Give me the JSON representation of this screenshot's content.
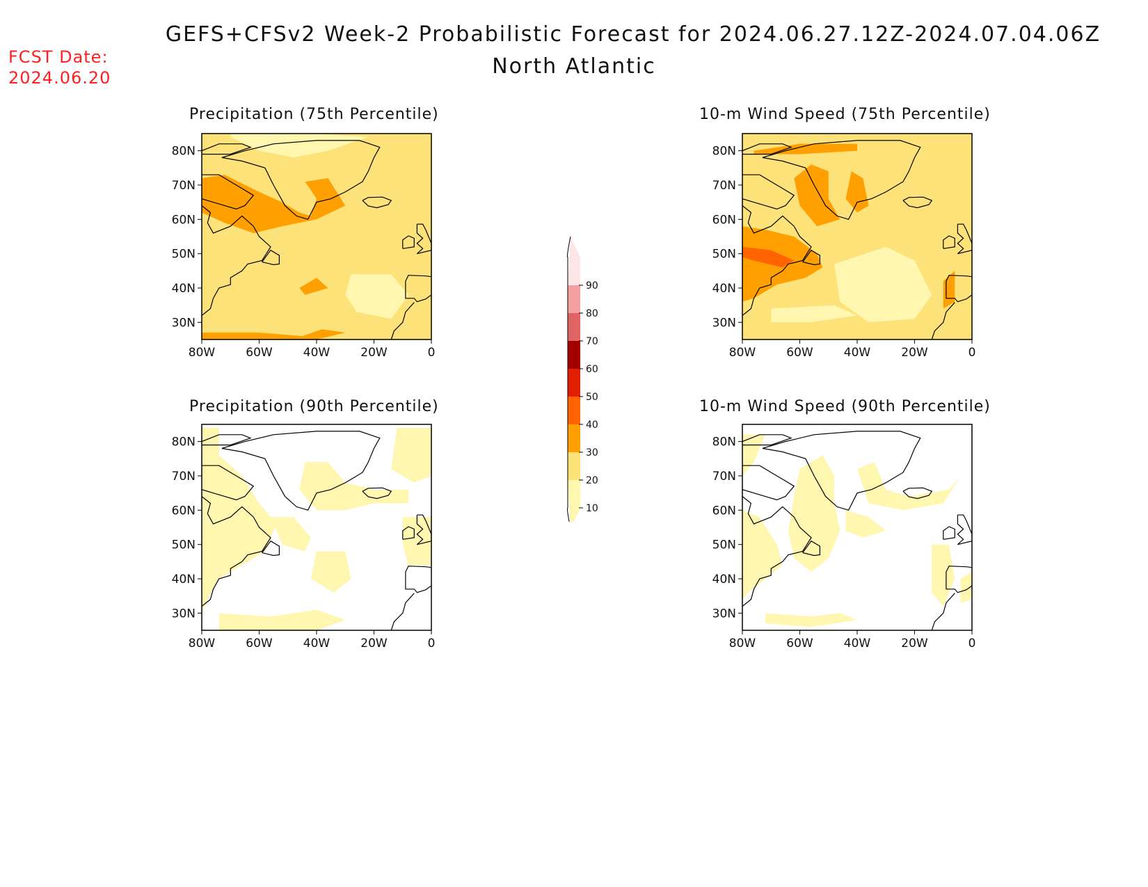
{
  "header": {
    "title": "GEFS+CFSv2 Week-2 Probabilistic Forecast for 2024.06.27.12Z-2024.07.04.06Z",
    "subtitle": "North Atlantic",
    "fcst_label": "FCST Date:",
    "fcst_date": "2024.06.20"
  },
  "panels": [
    {
      "id": "precip75",
      "title": "Precipitation (75th Percentile)",
      "base": "#fde27a"
    },
    {
      "id": "wind75",
      "title": "10-m Wind Speed (75th Percentile)",
      "base": "#fde27a"
    },
    {
      "id": "precip90",
      "title": "Precipitation (90th Percentile)",
      "base": "#ffffff"
    },
    {
      "id": "wind90",
      "title": "10-m Wind Speed (90th Percentile)",
      "base": "#ffffff"
    }
  ],
  "axes": {
    "lat_labels": [
      "80N",
      "70N",
      "60N",
      "50N",
      "40N",
      "30N"
    ],
    "lon_labels": [
      "80W",
      "60W",
      "40W",
      "20W",
      "0"
    ]
  },
  "colorbar": {
    "levels": [
      "10",
      "20",
      "30",
      "40",
      "50",
      "60",
      "70",
      "80",
      "90"
    ],
    "colors": [
      "#fff6b0",
      "#fde27a",
      "#ffa000",
      "#ff6400",
      "#e11e00",
      "#a50000",
      "#e06464",
      "#f5a0a0",
      "#ffe6e6"
    ]
  }
}
